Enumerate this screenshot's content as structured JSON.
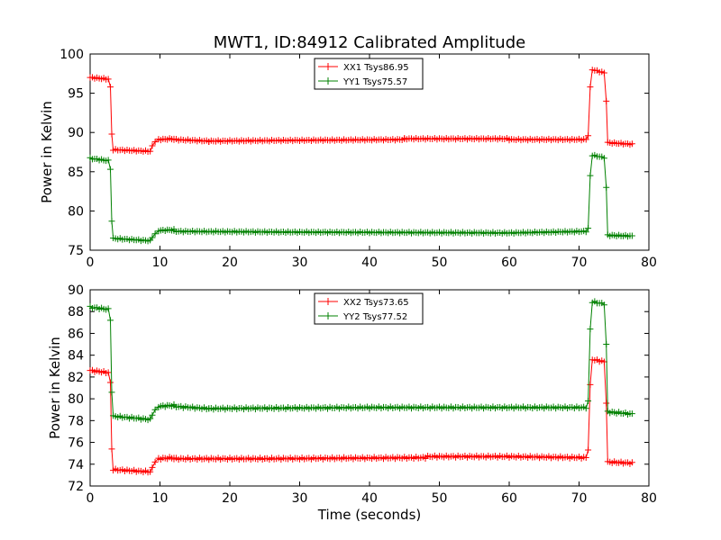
{
  "chart_data": [
    {
      "type": "line",
      "title": "MWT1, ID:84912 Calibrated Amplitude",
      "xlabel": "",
      "ylabel": "Power in Kelvin",
      "xlim": [
        0,
        80
      ],
      "ylim": [
        75,
        100
      ],
      "xticks": [
        0,
        10,
        20,
        30,
        40,
        50,
        60,
        70,
        80
      ],
      "yticks": [
        75,
        80,
        85,
        90,
        95,
        100
      ],
      "legend_position": "top-center",
      "grid": false,
      "series": [
        {
          "name": "XX1 Tsys86.95",
          "color": "#ff0000",
          "segments": [
            {
              "x0": 0,
              "x1": 2.6,
              "y0": 97.0,
              "y1": 96.8
            },
            {
              "x0": 2.9,
              "x1": 2.9,
              "y0": 95.8,
              "y1": 95.8
            },
            {
              "x0": 3.1,
              "x1": 3.1,
              "y0": 89.8,
              "y1": 89.8
            },
            {
              "x0": 3.3,
              "x1": 8.6,
              "y0": 87.8,
              "y1": 87.6
            },
            {
              "x0": 8.9,
              "x1": 8.9,
              "y0": 88.3,
              "y1": 88.3
            },
            {
              "x0": 9.3,
              "x1": 9.3,
              "y0": 88.8,
              "y1": 88.8
            },
            {
              "x0": 9.8,
              "x1": 12.0,
              "y0": 89.1,
              "y1": 89.2
            },
            {
              "x0": 12.0,
              "x1": 17.0,
              "y0": 89.1,
              "y1": 88.9
            },
            {
              "x0": 17.0,
              "x1": 30.0,
              "y0": 88.9,
              "y1": 89.0
            },
            {
              "x0": 30.0,
              "x1": 45.0,
              "y0": 89.0,
              "y1": 89.1
            },
            {
              "x0": 45.0,
              "x1": 60.0,
              "y0": 89.2,
              "y1": 89.2
            },
            {
              "x0": 60.0,
              "x1": 71.0,
              "y0": 89.1,
              "y1": 89.1
            },
            {
              "x0": 71.3,
              "x1": 71.3,
              "y0": 89.6,
              "y1": 89.6
            },
            {
              "x0": 71.6,
              "x1": 71.6,
              "y0": 95.8,
              "y1": 95.8
            },
            {
              "x0": 71.9,
              "x1": 73.6,
              "y0": 98.0,
              "y1": 97.6
            },
            {
              "x0": 73.9,
              "x1": 73.9,
              "y0": 94.0,
              "y1": 94.0
            },
            {
              "x0": 74.1,
              "x1": 77.6,
              "y0": 88.7,
              "y1": 88.5
            }
          ]
        },
        {
          "name": "YY1 Tsys75.57",
          "color": "#008000",
          "segments": [
            {
              "x0": 0,
              "x1": 2.6,
              "y0": 86.7,
              "y1": 86.4
            },
            {
              "x0": 2.9,
              "x1": 2.9,
              "y0": 85.3,
              "y1": 85.3
            },
            {
              "x0": 3.1,
              "x1": 3.1,
              "y0": 78.7,
              "y1": 78.7
            },
            {
              "x0": 3.3,
              "x1": 8.6,
              "y0": 76.5,
              "y1": 76.2
            },
            {
              "x0": 8.9,
              "x1": 8.9,
              "y0": 76.6,
              "y1": 76.6
            },
            {
              "x0": 9.3,
              "x1": 9.3,
              "y0": 77.1,
              "y1": 77.1
            },
            {
              "x0": 9.8,
              "x1": 12.0,
              "y0": 77.5,
              "y1": 77.6
            },
            {
              "x0": 12.0,
              "x1": 30.0,
              "y0": 77.4,
              "y1": 77.3
            },
            {
              "x0": 30.0,
              "x1": 60.0,
              "y0": 77.3,
              "y1": 77.2
            },
            {
              "x0": 60.0,
              "x1": 71.0,
              "y0": 77.2,
              "y1": 77.4
            },
            {
              "x0": 71.3,
              "x1": 71.3,
              "y0": 77.8,
              "y1": 77.8
            },
            {
              "x0": 71.6,
              "x1": 71.6,
              "y0": 84.5,
              "y1": 84.5
            },
            {
              "x0": 71.9,
              "x1": 73.6,
              "y0": 87.1,
              "y1": 86.8
            },
            {
              "x0": 73.9,
              "x1": 73.9,
              "y0": 83.0,
              "y1": 83.0
            },
            {
              "x0": 74.1,
              "x1": 77.6,
              "y0": 76.9,
              "y1": 76.8
            }
          ]
        }
      ]
    },
    {
      "type": "line",
      "title": "",
      "xlabel": "Time (seconds)",
      "ylabel": "Power in Kelvin",
      "xlim": [
        0,
        80
      ],
      "ylim": [
        72,
        90
      ],
      "xticks": [
        0,
        10,
        20,
        30,
        40,
        50,
        60,
        70,
        80
      ],
      "yticks": [
        72,
        74,
        76,
        78,
        80,
        82,
        84,
        86,
        88,
        90
      ],
      "legend_position": "top-center",
      "grid": false,
      "series": [
        {
          "name": "XX2 Tsys73.65",
          "color": "#ff0000",
          "segments": [
            {
              "x0": 0,
              "x1": 2.6,
              "y0": 82.6,
              "y1": 82.4
            },
            {
              "x0": 2.9,
              "x1": 2.9,
              "y0": 81.5,
              "y1": 81.5
            },
            {
              "x0": 3.1,
              "x1": 3.1,
              "y0": 75.4,
              "y1": 75.4
            },
            {
              "x0": 3.3,
              "x1": 8.6,
              "y0": 73.5,
              "y1": 73.3
            },
            {
              "x0": 8.9,
              "x1": 8.9,
              "y0": 73.7,
              "y1": 73.7
            },
            {
              "x0": 9.3,
              "x1": 9.3,
              "y0": 74.2,
              "y1": 74.2
            },
            {
              "x0": 9.8,
              "x1": 12.0,
              "y0": 74.5,
              "y1": 74.6
            },
            {
              "x0": 12.0,
              "x1": 25.0,
              "y0": 74.5,
              "y1": 74.5
            },
            {
              "x0": 25.0,
              "x1": 48.0,
              "y0": 74.5,
              "y1": 74.6
            },
            {
              "x0": 48.0,
              "x1": 60.0,
              "y0": 74.7,
              "y1": 74.7
            },
            {
              "x0": 60.0,
              "x1": 71.0,
              "y0": 74.7,
              "y1": 74.6
            },
            {
              "x0": 71.3,
              "x1": 71.3,
              "y0": 75.3,
              "y1": 75.3
            },
            {
              "x0": 71.6,
              "x1": 71.6,
              "y0": 81.3,
              "y1": 81.3
            },
            {
              "x0": 71.9,
              "x1": 73.6,
              "y0": 83.6,
              "y1": 83.4
            },
            {
              "x0": 73.9,
              "x1": 73.9,
              "y0": 79.6,
              "y1": 79.6
            },
            {
              "x0": 74.1,
              "x1": 77.6,
              "y0": 74.2,
              "y1": 74.1
            }
          ]
        },
        {
          "name": "YY2 Tsys77.52",
          "color": "#008000",
          "segments": [
            {
              "x0": 0,
              "x1": 2.6,
              "y0": 88.4,
              "y1": 88.2
            },
            {
              "x0": 2.9,
              "x1": 2.9,
              "y0": 87.2,
              "y1": 87.2
            },
            {
              "x0": 3.1,
              "x1": 3.1,
              "y0": 80.6,
              "y1": 80.6
            },
            {
              "x0": 3.3,
              "x1": 8.6,
              "y0": 78.4,
              "y1": 78.1
            },
            {
              "x0": 8.9,
              "x1": 8.9,
              "y0": 78.5,
              "y1": 78.5
            },
            {
              "x0": 9.3,
              "x1": 9.3,
              "y0": 79.0,
              "y1": 79.0
            },
            {
              "x0": 9.8,
              "x1": 12.0,
              "y0": 79.3,
              "y1": 79.4
            },
            {
              "x0": 12.0,
              "x1": 17.0,
              "y0": 79.3,
              "y1": 79.1
            },
            {
              "x0": 17.0,
              "x1": 40.0,
              "y0": 79.1,
              "y1": 79.2
            },
            {
              "x0": 40.0,
              "x1": 60.0,
              "y0": 79.2,
              "y1": 79.2
            },
            {
              "x0": 60.0,
              "x1": 71.0,
              "y0": 79.2,
              "y1": 79.2
            },
            {
              "x0": 71.3,
              "x1": 71.3,
              "y0": 79.8,
              "y1": 79.8
            },
            {
              "x0": 71.6,
              "x1": 71.6,
              "y0": 86.4,
              "y1": 86.4
            },
            {
              "x0": 71.9,
              "x1": 73.6,
              "y0": 88.9,
              "y1": 88.7
            },
            {
              "x0": 73.9,
              "x1": 73.9,
              "y0": 85.0,
              "y1": 85.0
            },
            {
              "x0": 74.1,
              "x1": 77.6,
              "y0": 78.8,
              "y1": 78.6
            }
          ]
        }
      ]
    }
  ]
}
